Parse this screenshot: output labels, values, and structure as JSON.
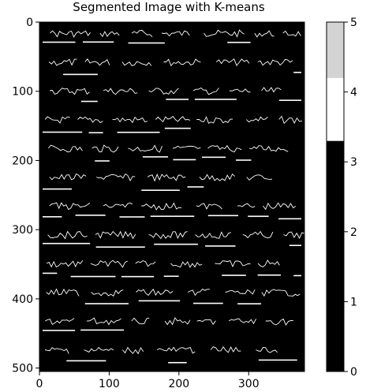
{
  "chart_data": [
    {
      "type": "heatmap",
      "title": "Segmented Image with K-means",
      "x_ticks": [
        0,
        100,
        200,
        300
      ],
      "y_ticks": [
        0,
        100,
        200,
        300,
        400,
        500
      ],
      "xlim": [
        0,
        380
      ],
      "ylim": [
        505,
        0
      ],
      "colormap": "gray",
      "content": "binary segmentation of handwritten text lines: white strokes on black background",
      "colors": {
        "background": "#000000",
        "foreground": "#ffffff"
      }
    },
    {
      "type": "colorbar",
      "ticks": [
        0,
        1,
        2,
        3,
        4,
        5
      ],
      "range": [
        0,
        5
      ],
      "segments": [
        {
          "from": 0,
          "to": 3.3,
          "color": "#000000"
        },
        {
          "from": 3.3,
          "to": 4.2,
          "color": "#ffffff"
        },
        {
          "from": 4.2,
          "to": 5,
          "color": "#d3d3d3"
        }
      ]
    }
  ]
}
